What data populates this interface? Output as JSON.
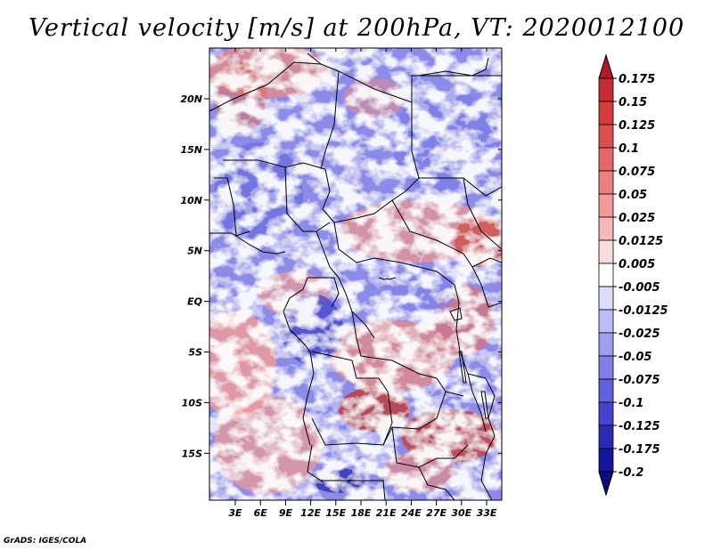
{
  "title": "Vertical velocity [m/s] at 200hPa, VT: 2020012100",
  "credit": "GrADS: IGES/COLA",
  "map": {
    "variable": "Vertical velocity",
    "units": "m/s",
    "level": "200hPa",
    "valid_time": "2020012100",
    "lon_ticks": [
      "3E",
      "6E",
      "9E",
      "12E",
      "15E",
      "18E",
      "21E",
      "24E",
      "27E",
      "30E",
      "33E"
    ],
    "lat_ticks": [
      "20N",
      "15N",
      "10N",
      "5N",
      "EQ",
      "5S",
      "10S",
      "15S"
    ]
  },
  "colorbar": {
    "levels": [
      "0.175",
      "0.15",
      "0.125",
      "0.1",
      "0.075",
      "0.05",
      "0.025",
      "0.0125",
      "0.005",
      "-0.005",
      "-0.0125",
      "-0.025",
      "-0.05",
      "-0.075",
      "-0.1",
      "-0.125",
      "-0.175",
      "-0.2"
    ],
    "colors": [
      "#b2182b",
      "#c62a33",
      "#d63c3c",
      "#e04f4f",
      "#e56767",
      "#eb8080",
      "#f09a9a",
      "#f6b8b8",
      "#fbdcdc",
      "#ffffff",
      "#dcdcfb",
      "#bcbcf6",
      "#9f9ff0",
      "#8080e8",
      "#6161dc",
      "#4444cc",
      "#2a2ab4",
      "#15159a",
      "#0a0a82"
    ]
  }
}
